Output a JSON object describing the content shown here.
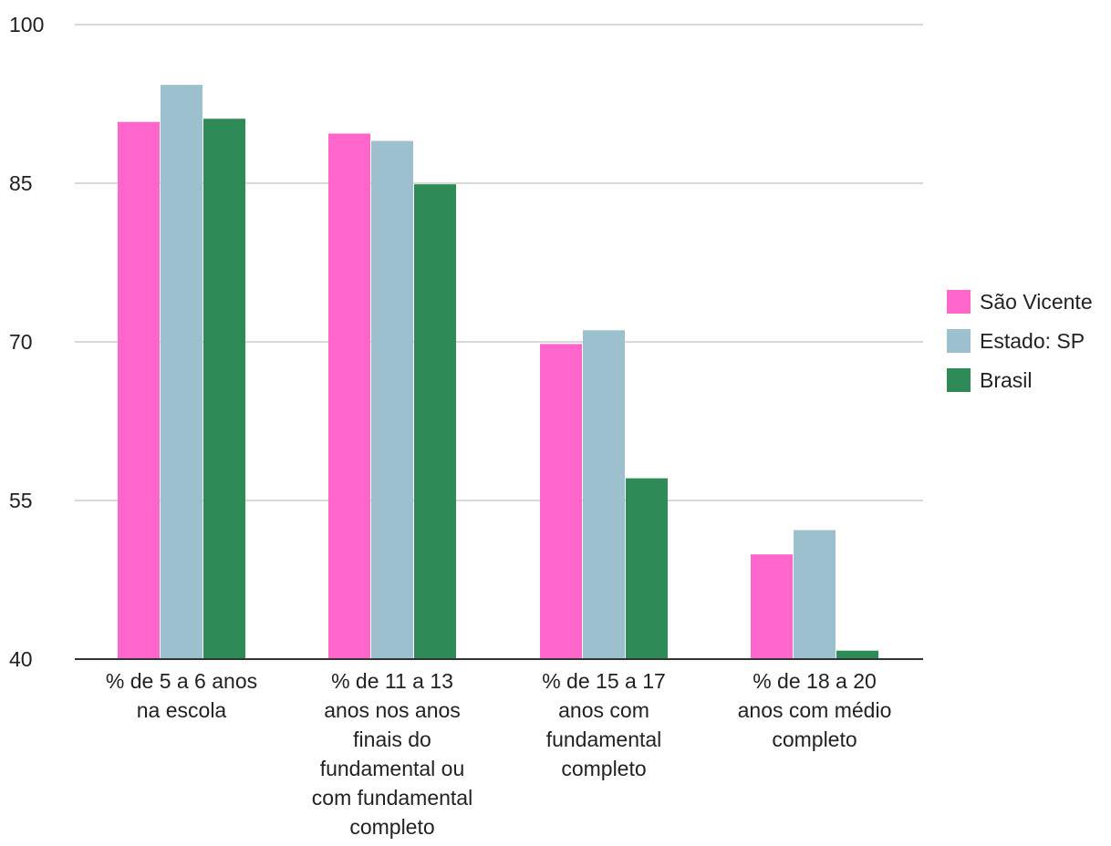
{
  "chart_data": {
    "type": "bar",
    "title": "",
    "xlabel": "",
    "ylabel": "",
    "ylim": [
      40,
      100
    ],
    "yticks": [
      40,
      55,
      70,
      85,
      100
    ],
    "grid": true,
    "legend_position": "right",
    "categories": [
      [
        "% de 5 a 6 anos",
        "na escola"
      ],
      [
        "% de 11 a 13",
        "anos nos anos",
        "finais do",
        "fundamental ou",
        "com fundamental",
        "completo"
      ],
      [
        "% de 15 a 17",
        "anos com",
        "fundamental",
        "completo"
      ],
      [
        "% de 18 a 20",
        "anos com médio",
        "completo"
      ]
    ],
    "series": [
      {
        "name": "São Vicente",
        "color": "#ff66cc",
        "values": [
          90.8,
          89.7,
          69.8,
          49.9
        ]
      },
      {
        "name": "Estado: SP",
        "color": "#9dc0cf",
        "values": [
          94.3,
          89.0,
          71.1,
          52.2
        ]
      },
      {
        "name": "Brasil",
        "color": "#2e8b57",
        "values": [
          91.1,
          84.9,
          57.1,
          40.8
        ]
      }
    ]
  }
}
